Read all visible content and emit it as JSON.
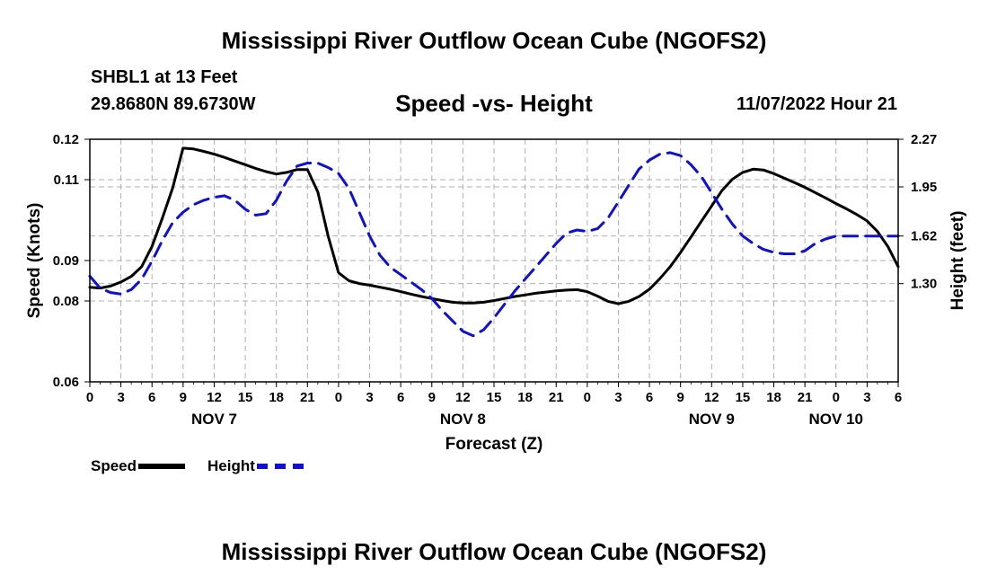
{
  "header": {
    "title": "Mississippi River Outflow Ocean Cube (NGOFS2)",
    "station": "SHBL1 at 13 Feet",
    "coords": "29.8680N  89.6730W",
    "subtitle": "Speed -vs- Height",
    "datetime": "11/07/2022 Hour 21"
  },
  "footer": {
    "title": "Mississippi River Outflow Ocean Cube (NGOFS2)"
  },
  "legend": {
    "speed": "Speed",
    "height": "Height"
  },
  "colors": {
    "speed": "#000000",
    "height": "#1010d0",
    "grid": "#b0b0b0"
  },
  "chart_data": {
    "type": "line",
    "xlabel": "Forecast (Z)",
    "ylabel": "Speed (Knots)",
    "y2label": "Height (feet)",
    "xlim": [
      0,
      78
    ],
    "ylim": [
      0.06,
      0.12
    ],
    "y2lim": [
      0.64,
      2.27
    ],
    "yticks": [
      0.06,
      0.08,
      0.09,
      0.11,
      0.12
    ],
    "y2ticks": [
      1.3,
      1.62,
      1.95,
      2.27
    ],
    "xticks": [
      0,
      3,
      6,
      9,
      12,
      15,
      18,
      21,
      24,
      27,
      30,
      33,
      36,
      39,
      42,
      45,
      48,
      51,
      54,
      57,
      60,
      63,
      66,
      69,
      72,
      75,
      78
    ],
    "xticklabels": [
      "0",
      "3",
      "6",
      "9",
      "12",
      "15",
      "18",
      "21",
      "0",
      "3",
      "6",
      "9",
      "12",
      "15",
      "18",
      "21",
      "0",
      "3",
      "6",
      "9",
      "12",
      "15",
      "18",
      "21",
      "0",
      "3",
      "6"
    ],
    "day_labels": [
      {
        "hour": 12,
        "label": "NOV 7"
      },
      {
        "hour": 36,
        "label": "NOV 8"
      },
      {
        "hour": 60,
        "label": "NOV 9"
      },
      {
        "hour": 72,
        "label": "NOV 10"
      }
    ],
    "series": [
      {
        "name": "Speed",
        "axis": "left",
        "x": [
          0,
          1,
          2,
          3,
          4,
          5,
          6,
          7,
          8,
          9,
          10,
          11,
          12,
          13,
          14,
          15,
          16,
          17,
          18,
          19,
          20,
          21,
          22,
          23,
          24,
          25,
          26,
          27,
          28,
          29,
          30,
          31,
          32,
          33,
          34,
          35,
          36,
          37,
          38,
          39,
          40,
          41,
          42,
          43,
          44,
          45,
          46,
          47,
          48,
          49,
          50,
          51,
          52,
          53,
          54,
          55,
          56,
          57,
          58,
          59,
          60,
          61,
          62,
          63,
          64,
          65,
          66,
          67,
          68,
          69,
          70,
          71,
          72,
          73,
          74,
          75,
          76,
          77,
          78
        ],
        "values": [
          0.0834,
          0.0832,
          0.0837,
          0.0847,
          0.0861,
          0.0885,
          0.0935,
          0.1005,
          0.108,
          0.1178,
          0.1176,
          0.117,
          0.1163,
          0.1155,
          0.1146,
          0.1137,
          0.1128,
          0.112,
          0.1114,
          0.1118,
          0.1125,
          0.1125,
          0.107,
          0.096,
          0.087,
          0.085,
          0.0843,
          0.0839,
          0.0834,
          0.0829,
          0.0823,
          0.0817,
          0.0811,
          0.0806,
          0.0801,
          0.0797,
          0.0795,
          0.0795,
          0.0797,
          0.0801,
          0.0806,
          0.0811,
          0.0815,
          0.0819,
          0.0822,
          0.0825,
          0.0827,
          0.0828,
          0.0823,
          0.0812,
          0.0799,
          0.0793,
          0.0799,
          0.0811,
          0.0829,
          0.0855,
          0.0885,
          0.092,
          0.0958,
          0.0997,
          0.1035,
          0.1073,
          0.1101,
          0.1118,
          0.1126,
          0.1124,
          0.1115,
          0.1104,
          0.1093,
          0.1081,
          0.1068,
          0.1055,
          0.1041,
          0.1028,
          0.1014,
          0.0998,
          0.0972,
          0.0935,
          0.0885
        ]
      },
      {
        "name": "Height",
        "axis": "right",
        "x": [
          0,
          1,
          2,
          3,
          4,
          5,
          6,
          7,
          8,
          9,
          10,
          11,
          12,
          13,
          14,
          15,
          16,
          17,
          18,
          19,
          20,
          21,
          22,
          23,
          24,
          25,
          26,
          27,
          28,
          29,
          30,
          31,
          32,
          33,
          34,
          35,
          36,
          37,
          38,
          39,
          40,
          41,
          42,
          43,
          44,
          45,
          46,
          47,
          48,
          49,
          50,
          51,
          52,
          53,
          54,
          55,
          56,
          57,
          58,
          59,
          60,
          61,
          62,
          63,
          64,
          65,
          66,
          67,
          68,
          69,
          70,
          71,
          72,
          73,
          74,
          75,
          76,
          77,
          78
        ],
        "values": [
          1.35,
          1.27,
          1.24,
          1.23,
          1.26,
          1.33,
          1.45,
          1.59,
          1.71,
          1.78,
          1.83,
          1.86,
          1.88,
          1.89,
          1.86,
          1.8,
          1.76,
          1.77,
          1.86,
          1.99,
          2.09,
          2.11,
          2.11,
          2.08,
          2.04,
          1.94,
          1.78,
          1.62,
          1.49,
          1.41,
          1.36,
          1.31,
          1.26,
          1.2,
          1.12,
          1.05,
          0.98,
          0.95,
          0.99,
          1.07,
          1.16,
          1.25,
          1.33,
          1.41,
          1.49,
          1.57,
          1.64,
          1.66,
          1.65,
          1.67,
          1.74,
          1.85,
          1.96,
          2.07,
          2.13,
          2.17,
          2.18,
          2.16,
          2.1,
          2.02,
          1.91,
          1.8,
          1.7,
          1.62,
          1.57,
          1.53,
          1.51,
          1.5,
          1.5,
          1.52,
          1.57,
          1.6,
          1.62,
          1.62,
          1.62,
          1.62,
          1.62,
          1.62,
          1.62
        ]
      }
    ]
  }
}
